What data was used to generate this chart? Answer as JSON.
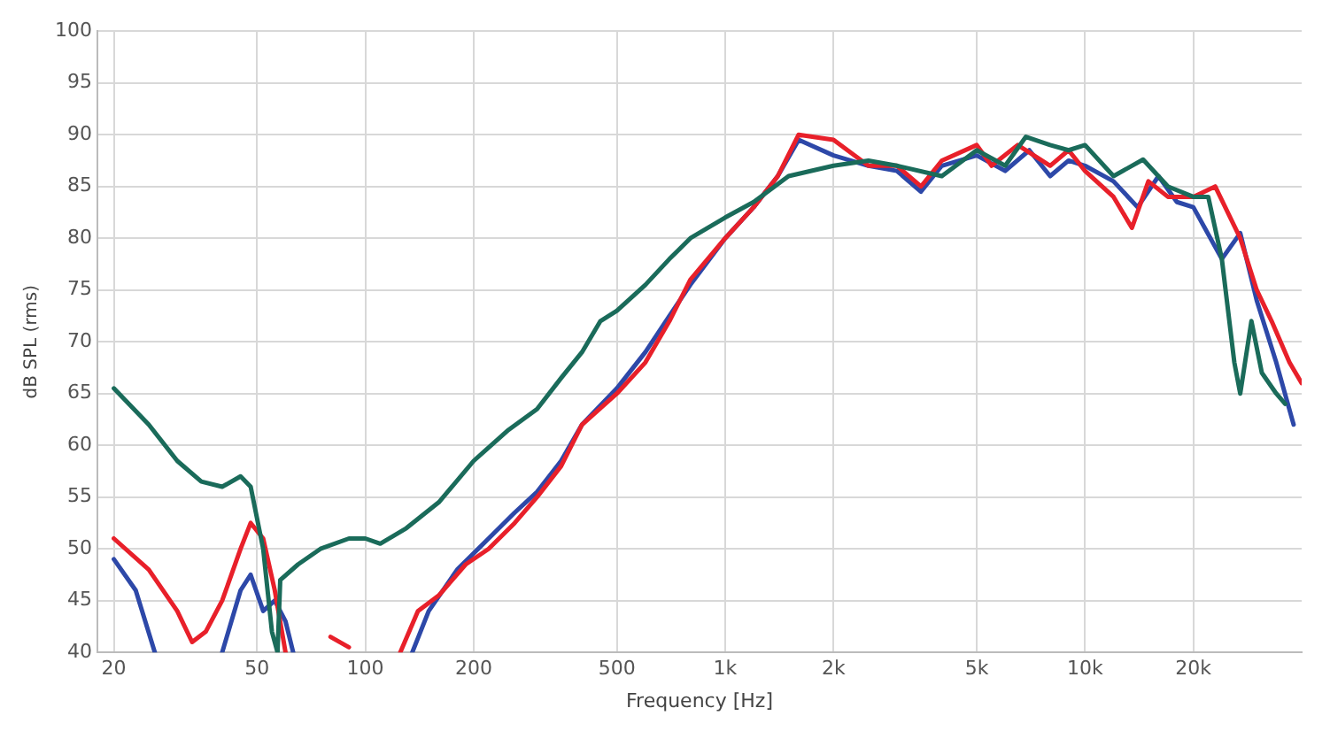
{
  "chart_data": {
    "type": "line",
    "xlabel": "Frequency [Hz]",
    "ylabel": "dB SPL (rms)",
    "log": "x",
    "grid": true,
    "legend": false,
    "marker": "none",
    "line_style": "solid",
    "xlim": [
      18,
      40000
    ],
    "xticks": [
      20,
      50,
      100,
      200,
      500,
      {
        "value": 1000,
        "label": "1k"
      },
      {
        "value": 2000,
        "label": "2k"
      },
      {
        "value": 5000,
        "label": "5k"
      },
      {
        "value": 10000,
        "label": "10k"
      },
      {
        "value": 20000,
        "label": "20k"
      }
    ],
    "ylim": [
      40,
      100
    ],
    "yticks": [
      40,
      45,
      50,
      55,
      60,
      65,
      70,
      75,
      80,
      85,
      90,
      95,
      100
    ],
    "series": [
      {
        "color": "#1a6b5a",
        "x": [
          20,
          25,
          30,
          35,
          40,
          45,
          48,
          52,
          55,
          57,
          58,
          65,
          75,
          90,
          100,
          110,
          130,
          160,
          200,
          250,
          300,
          350,
          400,
          450,
          500,
          600,
          700,
          800,
          1000,
          1200,
          1500,
          2000,
          2500,
          3000,
          4000,
          5000,
          6000,
          6850,
          8000,
          9000,
          10000,
          12000,
          14500,
          17000,
          20000,
          22000,
          24000,
          26000,
          27000,
          29000,
          31000,
          34000,
          36000
        ],
        "values": [
          65.5,
          62,
          58.5,
          56.5,
          56,
          57,
          56,
          50,
          42,
          40,
          47,
          48.5,
          50,
          51,
          51,
          50.5,
          52,
          54.5,
          58.5,
          61.5,
          63.5,
          66.5,
          69,
          72,
          73,
          75.5,
          78,
          80,
          82,
          83.5,
          86,
          87,
          87.5,
          87,
          86,
          88.5,
          87,
          89.8,
          89,
          88.5,
          89,
          86,
          87.6,
          85,
          84,
          84,
          78,
          68,
          65,
          72,
          67,
          65,
          64
        ]
      },
      {
        "color": "#e8202a",
        "x": [
          20,
          25,
          30,
          33,
          36,
          40,
          45,
          48,
          52,
          56,
          60,
          70,
          80,
          90,
          110,
          125,
          140,
          160,
          190,
          220,
          260,
          300,
          350,
          400,
          500,
          600,
          700,
          800,
          1000,
          1200,
          1400,
          1600,
          2000,
          2500,
          3000,
          3500,
          4000,
          5000,
          5500,
          6500,
          8000,
          9000,
          10000,
          12000,
          13500,
          15000,
          17000,
          20000,
          23000,
          27000,
          30000,
          33000,
          37000,
          40000
        ],
        "values": [
          51,
          48,
          44,
          41,
          42,
          45,
          50,
          52.5,
          51,
          46,
          40,
          null,
          41.5,
          40.5,
          null,
          40,
          44,
          45.5,
          48.5,
          50,
          52.5,
          55,
          58,
          62,
          65,
          68,
          72,
          76,
          80,
          83,
          86,
          90,
          89.5,
          87,
          87,
          85,
          87.5,
          89,
          87,
          89,
          87,
          88.5,
          86.5,
          84,
          81,
          85.5,
          84,
          84,
          85,
          80,
          75,
          72,
          68,
          66
        ]
      },
      {
        "color": "#2d48a8",
        "x": [
          20,
          23,
          26,
          33,
          40,
          45,
          48,
          52,
          56,
          60,
          63,
          100,
          135,
          150,
          180,
          220,
          260,
          300,
          350,
          400,
          500,
          600,
          700,
          800,
          1000,
          1200,
          1400,
          1600,
          2000,
          2500,
          3000,
          3500,
          4000,
          5000,
          6000,
          7000,
          8000,
          9000,
          10000,
          12000,
          14000,
          16000,
          18000,
          20000,
          24000,
          27000,
          30000,
          34000,
          38000
        ],
        "values": [
          49,
          46,
          40,
          null,
          40,
          46,
          47.5,
          44,
          45,
          43,
          40,
          null,
          40,
          44,
          48,
          51,
          53.5,
          55.5,
          58.5,
          62,
          65.5,
          69,
          72.5,
          75.5,
          80,
          83,
          86,
          89.5,
          88,
          87,
          86.5,
          84.5,
          87,
          88,
          86.5,
          88.5,
          86,
          87.5,
          87,
          85.5,
          83,
          86,
          83.5,
          83,
          78,
          80.5,
          74,
          68,
          62
        ]
      }
    ]
  }
}
